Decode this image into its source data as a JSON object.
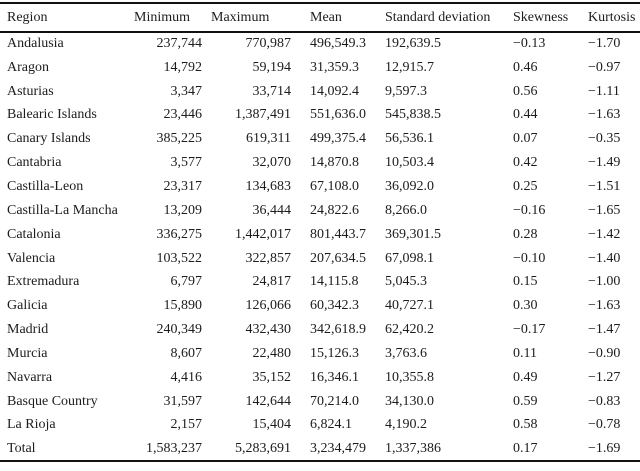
{
  "colors": {
    "background": "#ffffff",
    "text": "#1c1c1c",
    "rule": "#111111"
  },
  "table": {
    "columns": [
      {
        "key": "region",
        "label": "Region"
      },
      {
        "key": "minimum",
        "label": "Minimum"
      },
      {
        "key": "maximum",
        "label": "Maximum"
      },
      {
        "key": "mean",
        "label": "Mean"
      },
      {
        "key": "std_dev",
        "label": "Standard deviation"
      },
      {
        "key": "skewness",
        "label": "Skewness"
      },
      {
        "key": "kurtosis",
        "label": "Kurtosis"
      }
    ],
    "rows": [
      {
        "region": "Andalusia",
        "minimum": "237,744",
        "maximum": "770,987",
        "mean": "496,549.3",
        "std_dev": "192,639.5",
        "skewness": "−0.13",
        "kurtosis": "−1.70"
      },
      {
        "region": "Aragon",
        "minimum": "14,792",
        "maximum": "59,194",
        "mean": "31,359.3",
        "std_dev": "12,915.7",
        "skewness": "0.46",
        "kurtosis": "−0.97"
      },
      {
        "region": "Asturias",
        "minimum": "3,347",
        "maximum": "33,714",
        "mean": "14,092.4",
        "std_dev": "9,597.3",
        "skewness": "0.56",
        "kurtosis": "−1.11"
      },
      {
        "region": "Balearic Islands",
        "minimum": "23,446",
        "maximum": "1,387,491",
        "mean": "551,636.0",
        "std_dev": "545,838.5",
        "skewness": "0.44",
        "kurtosis": "−1.63"
      },
      {
        "region": "Canary Islands",
        "minimum": "385,225",
        "maximum": "619,311",
        "mean": "499,375.4",
        "std_dev": "56,536.1",
        "skewness": "0.07",
        "kurtosis": "−0.35"
      },
      {
        "region": "Cantabria",
        "minimum": "3,577",
        "maximum": "32,070",
        "mean": "14,870.8",
        "std_dev": "10,503.4",
        "skewness": "0.42",
        "kurtosis": "−1.49"
      },
      {
        "region": "Castilla-Leon",
        "minimum": "23,317",
        "maximum": "134,683",
        "mean": "67,108.0",
        "std_dev": "36,092.0",
        "skewness": "0.25",
        "kurtosis": "−1.51"
      },
      {
        "region": "Castilla-La Mancha",
        "minimum": "13,209",
        "maximum": "36,444",
        "mean": "24,822.6",
        "std_dev": "8,266.0",
        "skewness": "−0.16",
        "kurtosis": "−1.65"
      },
      {
        "region": "Catalonia",
        "minimum": "336,275",
        "maximum": "1,442,017",
        "mean": "801,443.7",
        "std_dev": "369,301.5",
        "skewness": "0.28",
        "kurtosis": "−1.42"
      },
      {
        "region": "Valencia",
        "minimum": "103,522",
        "maximum": "322,857",
        "mean": "207,634.5",
        "std_dev": "67,098.1",
        "skewness": "−0.10",
        "kurtosis": "−1.40"
      },
      {
        "region": "Extremadura",
        "minimum": "6,797",
        "maximum": "24,817",
        "mean": "14,115.8",
        "std_dev": "5,045.3",
        "skewness": "0.15",
        "kurtosis": "−1.00"
      },
      {
        "region": "Galicia",
        "minimum": "15,890",
        "maximum": "126,066",
        "mean": "60,342.3",
        "std_dev": "40,727.1",
        "skewness": "0.30",
        "kurtosis": "−1.63"
      },
      {
        "region": "Madrid",
        "minimum": "240,349",
        "maximum": "432,430",
        "mean": "342,618.9",
        "std_dev": "62,420.2",
        "skewness": "−0.17",
        "kurtosis": "−1.47"
      },
      {
        "region": "Murcia",
        "minimum": "8,607",
        "maximum": "22,480",
        "mean": "15,126.3",
        "std_dev": "3,763.6",
        "skewness": "0.11",
        "kurtosis": "−0.90"
      },
      {
        "region": "Navarra",
        "minimum": "4,416",
        "maximum": "35,152",
        "mean": "16,346.1",
        "std_dev": "10,355.8",
        "skewness": "0.49",
        "kurtosis": "−1.27"
      },
      {
        "region": "Basque Country",
        "minimum": "31,597",
        "maximum": "142,644",
        "mean": "70,214.0",
        "std_dev": "34,130.0",
        "skewness": "0.59",
        "kurtosis": "−0.83"
      },
      {
        "region": "La Rioja",
        "minimum": "2,157",
        "maximum": "15,404",
        "mean": "6,824.1",
        "std_dev": "4,190.2",
        "skewness": "0.58",
        "kurtosis": "−0.78"
      },
      {
        "region": "Total",
        "minimum": "1,583,237",
        "maximum": "5,283,691",
        "mean": "3,234,479",
        "std_dev": "1,337,386",
        "skewness": "0.17",
        "kurtosis": "−1.69"
      }
    ]
  }
}
